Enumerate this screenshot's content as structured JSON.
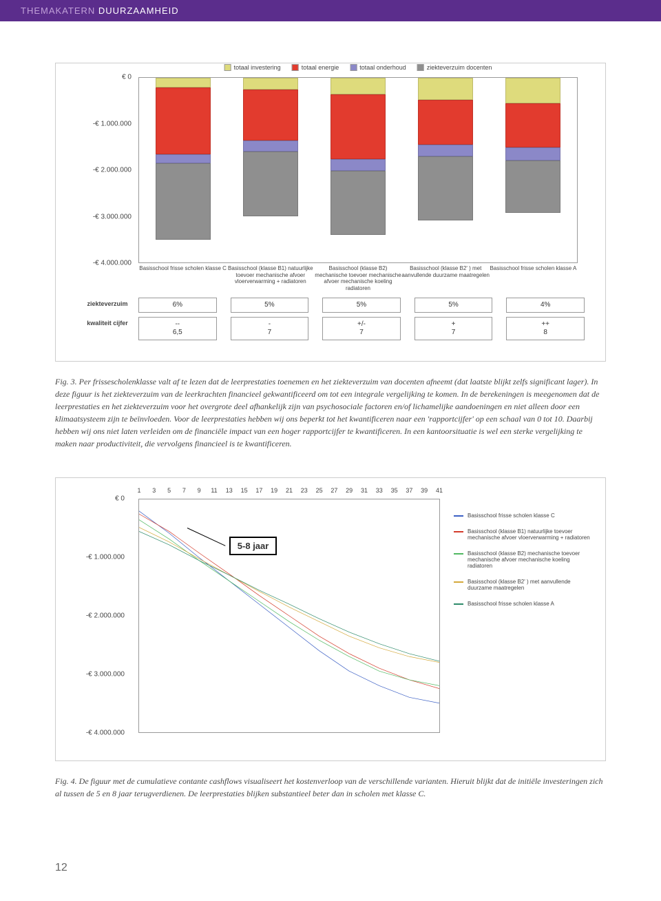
{
  "header": {
    "light": "THEMAKATERN",
    "bold": "DUURZAAMHEID"
  },
  "chart1": {
    "ylabels": [
      "€ 0",
      "-€ 1.000.000",
      "-€ 2.000.000",
      "-€ 3.000.000",
      "-€ 4.000.000"
    ],
    "ymin": -4000000,
    "ymax": 0,
    "legend": [
      {
        "label": "totaal investering",
        "color": "#dedb7c"
      },
      {
        "label": "totaal energie",
        "color": "#e23b2e"
      },
      {
        "label": "totaal onderhoud",
        "color": "#8b88c8"
      },
      {
        "label": "ziekteverzuim docenten",
        "color": "#8f8f8f"
      }
    ],
    "columns": [
      {
        "label": "Basisschool frisse scholen klasse C",
        "segs": [
          {
            "v": 200000,
            "c": "#dedb7c"
          },
          {
            "v": 1450000,
            "c": "#e23b2e"
          },
          {
            "v": 180000,
            "c": "#8b88c8"
          },
          {
            "v": 1650000,
            "c": "#8f8f8f"
          }
        ]
      },
      {
        "label": "Basisschool (klasse B1) natuurlijke toevoer mechanische afvoer vloerverwarming + radiatoren",
        "segs": [
          {
            "v": 250000,
            "c": "#dedb7c"
          },
          {
            "v": 1100000,
            "c": "#e23b2e"
          },
          {
            "v": 230000,
            "c": "#8b88c8"
          },
          {
            "v": 1400000,
            "c": "#8f8f8f"
          }
        ]
      },
      {
        "label": "Basisschool (klasse B2) mechanische toevoer mechanische afvoer mechanische koeling radiatoren",
        "segs": [
          {
            "v": 350000,
            "c": "#dedb7c"
          },
          {
            "v": 1400000,
            "c": "#e23b2e"
          },
          {
            "v": 250000,
            "c": "#8b88c8"
          },
          {
            "v": 1380000,
            "c": "#8f8f8f"
          }
        ]
      },
      {
        "label": "Basisschool (klasse B2' ) met aanvullende duurzame maatregelen",
        "segs": [
          {
            "v": 480000,
            "c": "#dedb7c"
          },
          {
            "v": 950000,
            "c": "#e23b2e"
          },
          {
            "v": 260000,
            "c": "#8b88c8"
          },
          {
            "v": 1380000,
            "c": "#8f8f8f"
          }
        ]
      },
      {
        "label": "Basisschool frisse scholen klasse A",
        "segs": [
          {
            "v": 550000,
            "c": "#dedb7c"
          },
          {
            "v": 950000,
            "c": "#e23b2e"
          },
          {
            "v": 280000,
            "c": "#8b88c8"
          },
          {
            "v": 1120000,
            "c": "#8f8f8f"
          }
        ]
      }
    ],
    "rows": [
      {
        "head": "ziekteverzuim",
        "cells": [
          "6%",
          "5%",
          "5%",
          "5%",
          "4%"
        ]
      },
      {
        "head": "kwaliteit cijfer",
        "cells": [
          "--\n6,5",
          "-\n7",
          "+/-\n7",
          "+\n7",
          "++\n8"
        ]
      }
    ]
  },
  "caption1": "Fig. 3. Per frissescholenklasse valt af te lezen dat de leerprestaties toenemen en het ziekteverzuim van docenten afneemt (dat laatste blijkt zelfs significant lager). In deze figuur is het ziekteverzuim van de leerkrachten financieel gekwantificeerd om tot een integrale vergelijking te komen. In de berekeningen is meegenomen dat de leerprestaties en het ziekteverzuim voor het overgrote deel afhankelijk zijn van psychosociale factoren en/of lichamelijke aandoeningen en niet alleen door een klimaatsysteem zijn te beïnvloeden. Voor de leerprestaties hebben wij ons beperkt tot het kwantificeren naar een 'rapportcijfer' op een schaal van 0 tot 10. Daarbij hebben wij ons niet laten verleiden om de financiële impact van een hoger rapportcijfer te kwantificeren. In een kantoorsituatie is wel een sterke vergelijking te maken naar productiviteit, die vervolgens financieel is te kwantificeren.",
  "chart2": {
    "xlabels": [
      "1",
      "3",
      "5",
      "7",
      "9",
      "11",
      "13",
      "15",
      "17",
      "19",
      "21",
      "23",
      "25",
      "27",
      "29",
      "31",
      "33",
      "35",
      "37",
      "39",
      "41"
    ],
    "ylabels": [
      {
        "txt": "€ 0",
        "v": 0
      },
      {
        "txt": "-€ 1.000.000",
        "v": -1000000
      },
      {
        "txt": "-€ 2.000.000",
        "v": -2000000
      },
      {
        "txt": "-€ 3.000.000",
        "v": -3000000
      },
      {
        "txt": "-€ 4.000.000",
        "v": -4000000
      }
    ],
    "ymin": -4000000,
    "ymax": 0,
    "annotation": "5-8 jaar",
    "series": [
      {
        "label": "Basisschool frisse scholen klasse C",
        "color": "#3b5fc4",
        "pts": [
          [
            1,
            -200000
          ],
          [
            5,
            -580000
          ],
          [
            9,
            -1000000
          ],
          [
            13,
            -1400000
          ],
          [
            17,
            -1800000
          ],
          [
            21,
            -2200000
          ],
          [
            25,
            -2600000
          ],
          [
            29,
            -2950000
          ],
          [
            33,
            -3200000
          ],
          [
            37,
            -3400000
          ],
          [
            41,
            -3500000
          ]
        ]
      },
      {
        "label": "Basisschool (klasse B1) natuurlijke toevoer mechanische afvoer vloerverwarming + radiatoren",
        "color": "#d43a2a",
        "pts": [
          [
            1,
            -250000
          ],
          [
            5,
            -550000
          ],
          [
            9,
            -920000
          ],
          [
            13,
            -1280000
          ],
          [
            17,
            -1650000
          ],
          [
            21,
            -2000000
          ],
          [
            25,
            -2350000
          ],
          [
            29,
            -2650000
          ],
          [
            33,
            -2900000
          ],
          [
            37,
            -3100000
          ],
          [
            41,
            -3250000
          ]
        ]
      },
      {
        "label": "Basisschool (klasse B2) mechanische toevoer mechanische afvoer mechanische koeling radiatoren",
        "color": "#4fb860",
        "pts": [
          [
            1,
            -350000
          ],
          [
            5,
            -680000
          ],
          [
            9,
            -1050000
          ],
          [
            13,
            -1400000
          ],
          [
            17,
            -1750000
          ],
          [
            21,
            -2100000
          ],
          [
            25,
            -2420000
          ],
          [
            29,
            -2700000
          ],
          [
            33,
            -2950000
          ],
          [
            37,
            -3100000
          ],
          [
            41,
            -3200000
          ]
        ]
      },
      {
        "label": "Basisschool (klasse B2' ) met aanvullende duurzame maatregelen",
        "color": "#d4a83a",
        "pts": [
          [
            1,
            -480000
          ],
          [
            5,
            -730000
          ],
          [
            9,
            -1020000
          ],
          [
            13,
            -1300000
          ],
          [
            17,
            -1580000
          ],
          [
            21,
            -1850000
          ],
          [
            25,
            -2100000
          ],
          [
            29,
            -2350000
          ],
          [
            33,
            -2550000
          ],
          [
            37,
            -2700000
          ],
          [
            41,
            -2800000
          ]
        ]
      },
      {
        "label": "Basisschool frisse scholen klasse A",
        "color": "#2d8a6a",
        "pts": [
          [
            1,
            -550000
          ],
          [
            5,
            -780000
          ],
          [
            9,
            -1050000
          ],
          [
            13,
            -1300000
          ],
          [
            17,
            -1560000
          ],
          [
            21,
            -1800000
          ],
          [
            25,
            -2050000
          ],
          [
            29,
            -2280000
          ],
          [
            33,
            -2480000
          ],
          [
            37,
            -2650000
          ],
          [
            41,
            -2780000
          ]
        ]
      }
    ]
  },
  "caption2": "Fig. 4. De figuur met de cumulatieve contante cashflows visualiseert het kostenverloop van de verschillende varianten. Hieruit blijkt dat de initiële investeringen zich al tussen de 5 en 8 jaar terugverdienen. De leerprestaties blijken substantieel beter dan in scholen met klasse C.",
  "pageNum": "12"
}
